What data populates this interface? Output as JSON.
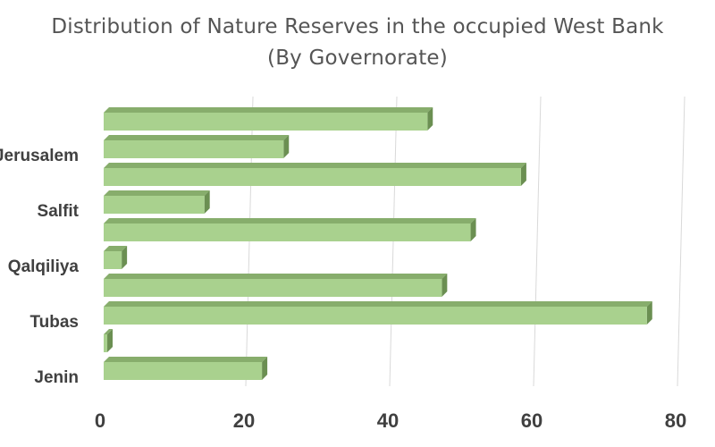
{
  "chart_data": {
    "type": "bar",
    "orientation": "horizontal",
    "title": "Distribution of Nature Reserves in the occupied West Bank",
    "subtitle": "(By Governorate)",
    "categories": [
      "",
      "Jerusalem",
      "",
      "Salfit",
      "",
      "Qalqiliya",
      "",
      "Tubas",
      "",
      "Jenin"
    ],
    "values": [
      45,
      25,
      58,
      14,
      51,
      2.5,
      47,
      75.5,
      0.5,
      22
    ],
    "xlim": [
      0,
      80
    ],
    "xticks": [
      0,
      20,
      40,
      60,
      80
    ],
    "grid": true,
    "legend": "none",
    "bar_color": "#a9d18e",
    "bar_top_color": "#87ad6c",
    "bar_side_color": "#6b8f52"
  }
}
